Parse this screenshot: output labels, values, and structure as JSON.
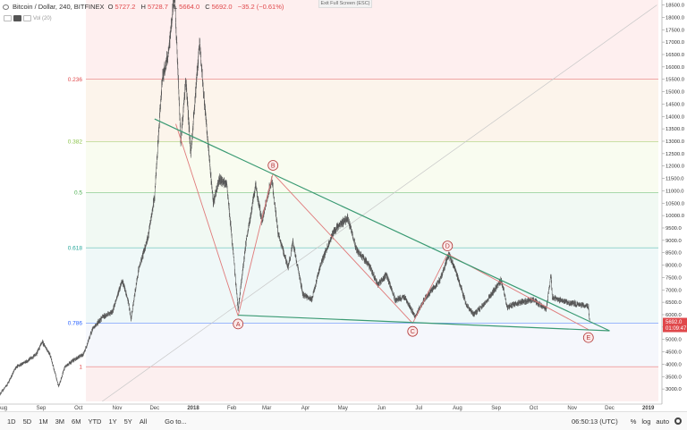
{
  "header": {
    "symbol": "Bitcoin / Dollar, 240, BITFINEX",
    "o_label": "O",
    "o_value": "5727.2",
    "h_label": "H",
    "h_value": "5728.7",
    "l_label": "L",
    "l_value": "5664.0",
    "c_label": "C",
    "c_value": "5692.0",
    "change": "−35.2 (−0.61%)",
    "indicator": "Vol (20)"
  },
  "exit_fullscreen": "Exit Full Screen (ESC)",
  "bottombar": {
    "timeframes": [
      "1D",
      "5D",
      "1M",
      "3M",
      "6M",
      "YTD",
      "1Y",
      "5Y",
      "All"
    ],
    "goto": "Go to...",
    "clock": "06:50:13 (UTC)",
    "pct": "%",
    "log": "log",
    "auto": "auto"
  },
  "colors": {
    "candles": "#555555",
    "trendline": "#3a9a73",
    "pattern": "#e07a7a",
    "point_label": "#b33a3a",
    "last_price": "#e0484b",
    "diagonal": "#c8c8c8"
  },
  "chart_data": {
    "type": "candlestick",
    "symbol": "BTCUSD",
    "interval": "240",
    "exchange": "BITFINEX",
    "y_scale": "linear",
    "ylim": [
      2500,
      18700
    ],
    "yticks": [
      3000,
      3500,
      4000,
      4500,
      5000,
      5500,
      6000,
      6500,
      7000,
      7500,
      8000,
      8500,
      9000,
      9500,
      10000,
      10500,
      11000,
      11500,
      12000,
      12500,
      13000,
      13500,
      14000,
      14500,
      15000,
      15500,
      16000,
      16500,
      17000,
      17500,
      18000,
      18500
    ],
    "xlim": [
      "2017-07-30",
      "2019-01-12"
    ],
    "x_ticks": [
      {
        "label": "Aug",
        "date": "2017-08-01"
      },
      {
        "label": "Sep",
        "date": "2017-09-01"
      },
      {
        "label": "Oct",
        "date": "2017-10-01"
      },
      {
        "label": "Nov",
        "date": "2017-11-01"
      },
      {
        "label": "Dec",
        "date": "2017-12-01"
      },
      {
        "label": "2018",
        "date": "2018-01-01",
        "bold": true
      },
      {
        "label": "Feb",
        "date": "2018-02-01"
      },
      {
        "label": "Mar",
        "date": "2018-03-01"
      },
      {
        "label": "Apr",
        "date": "2018-04-01"
      },
      {
        "label": "May",
        "date": "2018-05-01"
      },
      {
        "label": "Jun",
        "date": "2018-06-01"
      },
      {
        "label": "Jul",
        "date": "2018-07-01"
      },
      {
        "label": "Aug",
        "date": "2018-08-01"
      },
      {
        "label": "Sep",
        "date": "2018-09-01"
      },
      {
        "label": "Oct",
        "date": "2018-10-01"
      },
      {
        "label": "Nov",
        "date": "2018-11-01"
      },
      {
        "label": "Dec",
        "date": "2018-12-01"
      },
      {
        "label": "2019",
        "date": "2019-01-01",
        "bold": true
      }
    ],
    "price_path": [
      {
        "date": "2017-07-30",
        "price": 2800
      },
      {
        "date": "2017-08-05",
        "price": 3200
      },
      {
        "date": "2017-08-12",
        "price": 3900
      },
      {
        "date": "2017-08-20",
        "price": 4100
      },
      {
        "date": "2017-08-28",
        "price": 4400
      },
      {
        "date": "2017-09-02",
        "price": 4900
      },
      {
        "date": "2017-09-08",
        "price": 4400
      },
      {
        "date": "2017-09-15",
        "price": 3100
      },
      {
        "date": "2017-09-20",
        "price": 3900
      },
      {
        "date": "2017-09-28",
        "price": 4200
      },
      {
        "date": "2017-10-05",
        "price": 4400
      },
      {
        "date": "2017-10-12",
        "price": 5400
      },
      {
        "date": "2017-10-20",
        "price": 5900
      },
      {
        "date": "2017-10-28",
        "price": 6100
      },
      {
        "date": "2017-11-05",
        "price": 7400
      },
      {
        "date": "2017-11-10",
        "price": 6500
      },
      {
        "date": "2017-11-12",
        "price": 5800
      },
      {
        "date": "2017-11-18",
        "price": 7800
      },
      {
        "date": "2017-11-26",
        "price": 9200
      },
      {
        "date": "2017-12-01",
        "price": 10800
      },
      {
        "date": "2017-12-07",
        "price": 15500
      },
      {
        "date": "2017-12-12",
        "price": 16500
      },
      {
        "date": "2017-12-17",
        "price": 19000
      },
      {
        "date": "2017-12-22",
        "price": 13000
      },
      {
        "date": "2017-12-26",
        "price": 15500
      },
      {
        "date": "2017-12-30",
        "price": 12500
      },
      {
        "date": "2018-01-06",
        "price": 17000
      },
      {
        "date": "2018-01-10",
        "price": 14500
      },
      {
        "date": "2018-01-17",
        "price": 10500
      },
      {
        "date": "2018-01-22",
        "price": 11500
      },
      {
        "date": "2018-01-28",
        "price": 11200
      },
      {
        "date": "2018-02-02",
        "price": 8500
      },
      {
        "date": "2018-02-06",
        "price": 6200
      },
      {
        "date": "2018-02-12",
        "price": 8800
      },
      {
        "date": "2018-02-20",
        "price": 11200
      },
      {
        "date": "2018-02-25",
        "price": 9800
      },
      {
        "date": "2018-03-05",
        "price": 11500
      },
      {
        "date": "2018-03-10",
        "price": 9300
      },
      {
        "date": "2018-03-18",
        "price": 7900
      },
      {
        "date": "2018-03-22",
        "price": 8900
      },
      {
        "date": "2018-03-30",
        "price": 6800
      },
      {
        "date": "2018-04-06",
        "price": 6600
      },
      {
        "date": "2018-04-13",
        "price": 8000
      },
      {
        "date": "2018-04-24",
        "price": 9400
      },
      {
        "date": "2018-05-05",
        "price": 9900
      },
      {
        "date": "2018-05-12",
        "price": 8600
      },
      {
        "date": "2018-05-22",
        "price": 8000
      },
      {
        "date": "2018-05-29",
        "price": 7200
      },
      {
        "date": "2018-06-05",
        "price": 7600
      },
      {
        "date": "2018-06-12",
        "price": 6600
      },
      {
        "date": "2018-06-20",
        "price": 6700
      },
      {
        "date": "2018-06-28",
        "price": 5900
      },
      {
        "date": "2018-07-05",
        "price": 6600
      },
      {
        "date": "2018-07-18",
        "price": 7400
      },
      {
        "date": "2018-07-25",
        "price": 8450
      },
      {
        "date": "2018-07-31",
        "price": 7700
      },
      {
        "date": "2018-08-08",
        "price": 6400
      },
      {
        "date": "2018-08-14",
        "price": 6000
      },
      {
        "date": "2018-08-22",
        "price": 6400
      },
      {
        "date": "2018-09-01",
        "price": 7100
      },
      {
        "date": "2018-09-05",
        "price": 7400
      },
      {
        "date": "2018-09-10",
        "price": 6300
      },
      {
        "date": "2018-09-20",
        "price": 6500
      },
      {
        "date": "2018-10-01",
        "price": 6600
      },
      {
        "date": "2018-10-11",
        "price": 6200
      },
      {
        "date": "2018-10-15",
        "price": 7600
      },
      {
        "date": "2018-10-16",
        "price": 6700
      },
      {
        "date": "2018-10-28",
        "price": 6500
      },
      {
        "date": "2018-11-10",
        "price": 6400
      },
      {
        "date": "2018-11-14",
        "price": 6300
      },
      {
        "date": "2018-11-15",
        "price": 5692
      }
    ],
    "fibonacci": {
      "levels": [
        {
          "label": "0.236",
          "price": 15500,
          "color": "#e0484b",
          "band": "#fde8e8"
        },
        {
          "label": "0.382",
          "price": 12980,
          "color": "#8bc34a",
          "band": "#fbf1e6"
        },
        {
          "label": "0.5",
          "price": 10930,
          "color": "#4caf50",
          "band": "#f7fbec"
        },
        {
          "label": "0.618",
          "price": 8700,
          "color": "#26a69a",
          "band": "#eef8f0"
        },
        {
          "label": "0.786",
          "price": 5660,
          "color": "#2962ff",
          "band": "#ebf6f6"
        },
        {
          "label": "1",
          "price": 3900,
          "color": "#e0484b",
          "band": "#f3f5fb"
        }
      ],
      "top_band_color": "#fde8e8",
      "bottom_band_color": "#fbebeb"
    },
    "wave_points": [
      {
        "label": "A",
        "date": "2018-02-06",
        "price": 5950,
        "label_below": true
      },
      {
        "label": "B",
        "date": "2018-03-06",
        "price": 11700,
        "label_below": false
      },
      {
        "label": "C",
        "date": "2018-06-26",
        "price": 5650,
        "label_below": true
      },
      {
        "label": "D",
        "date": "2018-07-24",
        "price": 8450,
        "label_below": false
      },
      {
        "label": "E",
        "date": "2018-11-14",
        "price": 5400,
        "label_below": true
      }
    ],
    "pattern_lines": [
      {
        "from": {
          "date": "2017-12-18",
          "price": 13700
        },
        "to": {
          "date": "2018-02-06",
          "price": 5950
        }
      },
      {
        "from": {
          "date": "2018-02-06",
          "price": 5950
        },
        "to": {
          "date": "2018-03-06",
          "price": 11700
        }
      },
      {
        "from": {
          "date": "2018-03-06",
          "price": 11700
        },
        "to": {
          "date": "2018-06-26",
          "price": 5650
        }
      },
      {
        "from": {
          "date": "2018-06-26",
          "price": 5650
        },
        "to": {
          "date": "2018-07-24",
          "price": 8450
        }
      },
      {
        "from": {
          "date": "2018-07-24",
          "price": 8450
        },
        "to": {
          "date": "2018-11-14",
          "price": 5400
        }
      }
    ],
    "trendlines": [
      {
        "from": {
          "date": "2017-12-01",
          "price": 13900
        },
        "to": {
          "date": "2018-12-01",
          "price": 5350
        }
      },
      {
        "from": {
          "date": "2018-02-06",
          "price": 5980
        },
        "to": {
          "date": "2018-12-01",
          "price": 5350
        }
      }
    ],
    "diagonal_line": {
      "from": {
        "date": "2017-10-20",
        "price": 2500
      },
      "to": {
        "date": "2019-01-08",
        "price": 18500
      }
    },
    "last_price": {
      "value": "5692.0",
      "countdown": "01:09:47"
    },
    "grid": false,
    "legend": "none"
  }
}
